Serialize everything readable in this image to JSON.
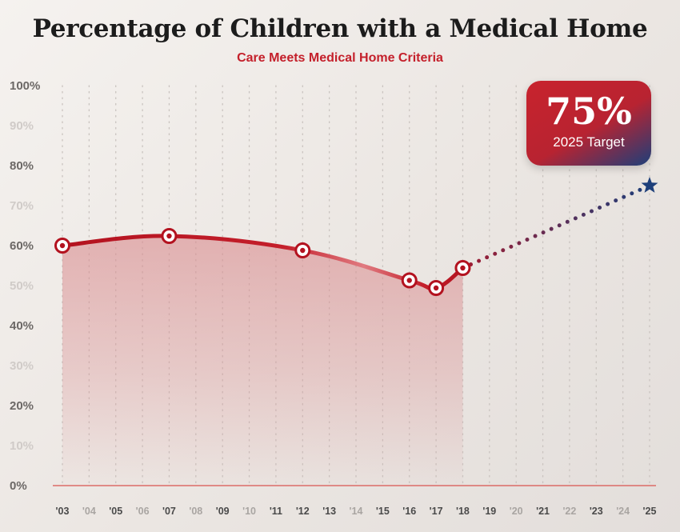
{
  "title": "Percentage of Children with a Medical Home",
  "subtitle": "Care Meets Medical Home Criteria",
  "target": {
    "value": "75%",
    "label": "2025 Target"
  },
  "colors": {
    "actual_line": "#b3121f",
    "area_fill": "#d98c8f",
    "projection_start": "#a01c32",
    "projection_end": "#1d3f7a",
    "star": "#1d3f7a",
    "axis_line": "#d9534f",
    "subtitle": "#c4202b"
  },
  "chart_data": {
    "type": "line",
    "title": "Percentage of Children with a Medical Home",
    "subtitle": "Care Meets Medical Home Criteria",
    "x_ticks": [
      "'03",
      "'04",
      "'05",
      "'06",
      "'07",
      "'08",
      "'09",
      "'10",
      "'11",
      "'12",
      "'13",
      "'14",
      "'15",
      "'16",
      "'17",
      "'18",
      "'19",
      "'20",
      "'21",
      "'22",
      "'23",
      "'24",
      "'25"
    ],
    "y_ticks": [
      "0%",
      "10%",
      "20%",
      "30%",
      "40%",
      "50%",
      "60%",
      "70%",
      "80%",
      "90%",
      "100%"
    ],
    "xlim": [
      2003,
      2025
    ],
    "ylim": [
      0,
      100
    ],
    "grid": true,
    "series": [
      {
        "style": "solid-area",
        "points": [
          {
            "x": 2003,
            "y": 60
          },
          {
            "x": 2007,
            "y": 62.4
          },
          {
            "x": 2012,
            "y": 58.8
          },
          {
            "x": 2016,
            "y": 51.3
          },
          {
            "x": 2017,
            "y": 49.4
          },
          {
            "x": 2018,
            "y": 54.4
          }
        ]
      },
      {
        "style": "dotted-projection",
        "points": [
          {
            "x": 2018,
            "y": 54.4
          },
          {
            "x": 2025,
            "y": 75
          }
        ]
      }
    ],
    "annotations": [
      {
        "x": 2025,
        "y": 75,
        "text": "75%",
        "subtext": "2025 Target",
        "marker": "star"
      }
    ]
  }
}
